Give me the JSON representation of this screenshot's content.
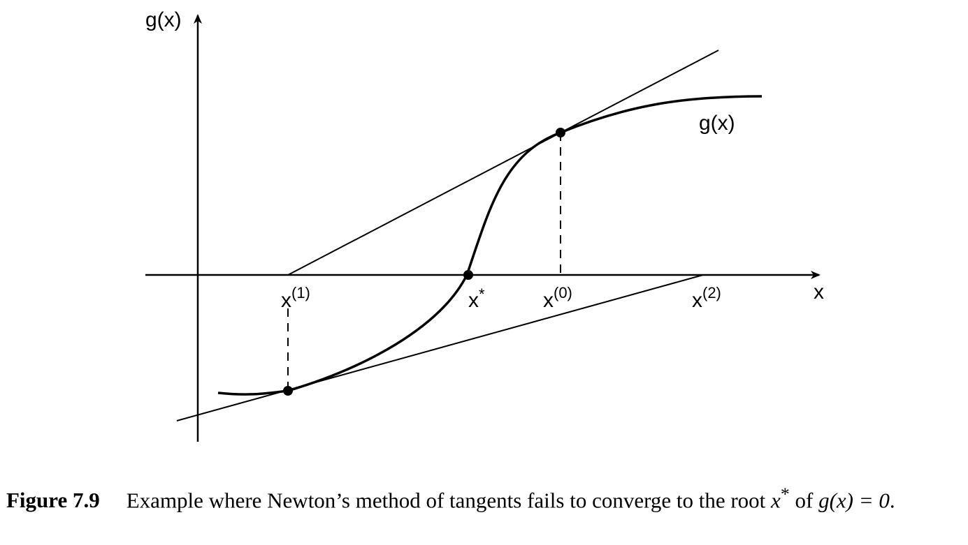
{
  "diagram": {
    "y_axis_label": "g(x)",
    "x_axis_label": "x",
    "curve_label": "g(x)",
    "points": {
      "x1": {
        "base": "x",
        "sup": "(1)"
      },
      "xstar": {
        "base": "x",
        "sup": "*"
      },
      "x0": {
        "base": "x",
        "sup": "(0)"
      },
      "x2": {
        "base": "x",
        "sup": "(2)"
      }
    }
  },
  "caption": {
    "label": "Figure 7.9",
    "text_before": "Example where Newton’s method of tangents fails to converge to the root ",
    "math_root_base": "x",
    "math_root_sup": "*",
    "text_of": " of ",
    "math_equation": "g(x) = 0",
    "text_after": "."
  },
  "colors": {
    "ink": "#000000",
    "background": "#ffffff"
  }
}
